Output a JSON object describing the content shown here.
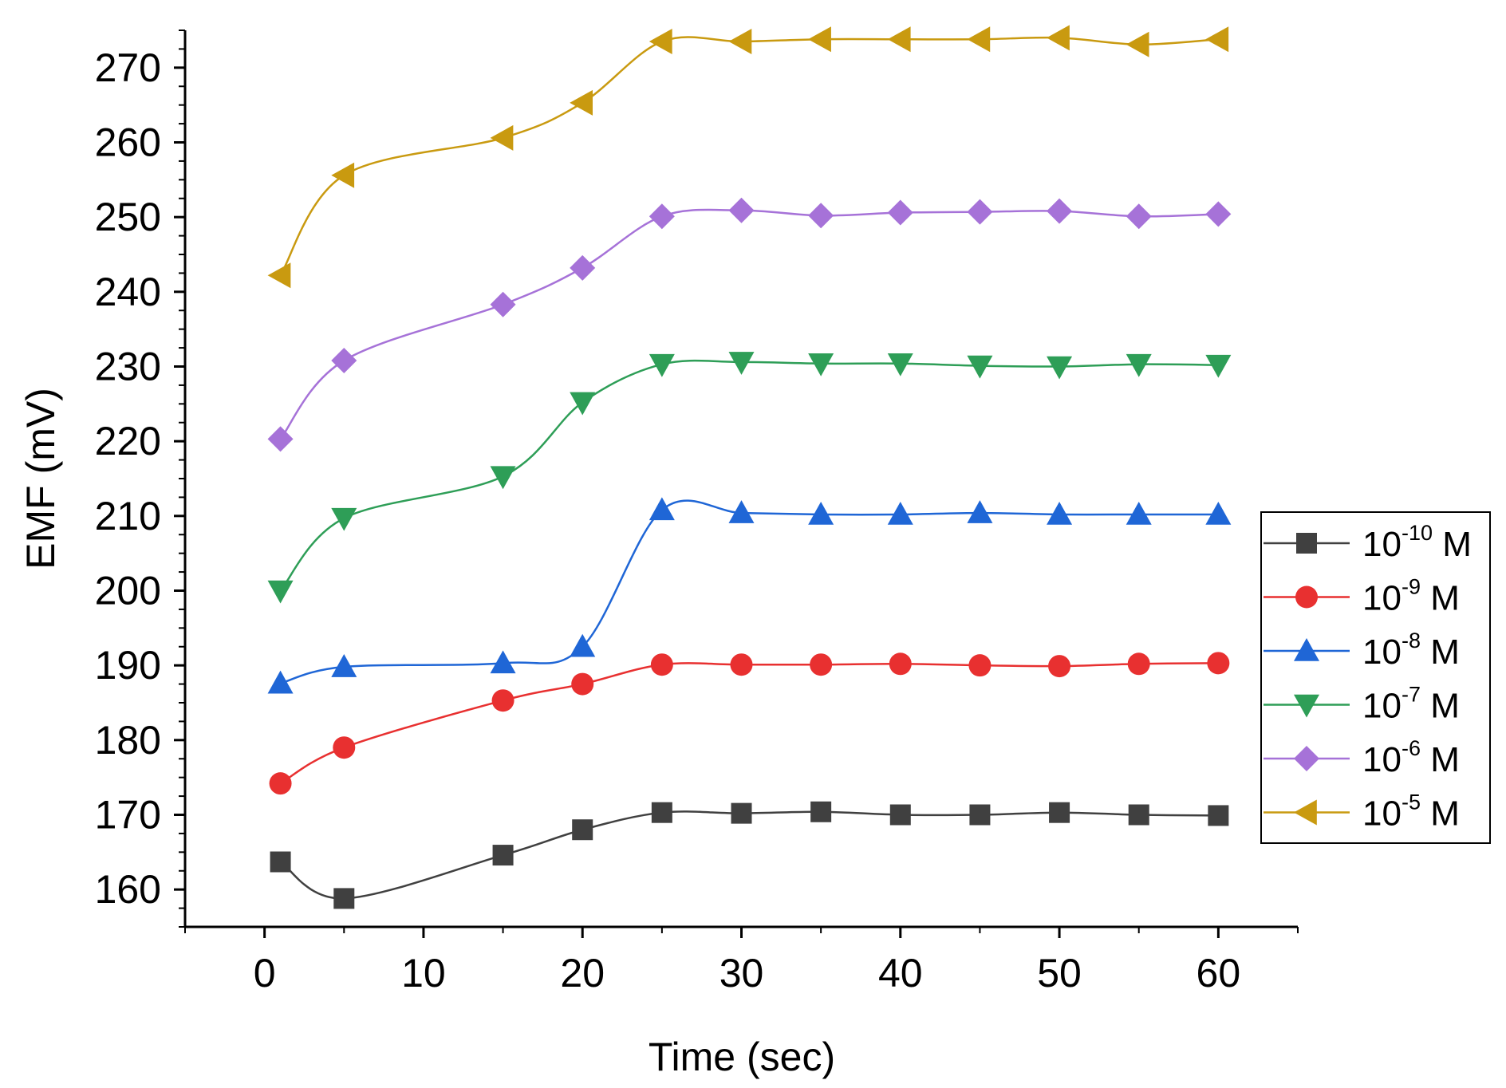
{
  "chart_data": {
    "type": "line",
    "title": "",
    "xlabel": "Time (sec)",
    "ylabel": "EMF (mV)",
    "xlim": [
      -5,
      65
    ],
    "ylim": [
      155,
      275
    ],
    "xticks": [
      0,
      10,
      20,
      30,
      40,
      50,
      60
    ],
    "yticks": [
      160,
      170,
      180,
      190,
      200,
      210,
      220,
      230,
      240,
      250,
      260,
      270
    ],
    "x": [
      1,
      5,
      15,
      20,
      25,
      30,
      35,
      40,
      45,
      50,
      55,
      60
    ],
    "legend_position": "right",
    "series": [
      {
        "name": "10-10 M",
        "label_base": "10",
        "label_exp": "-10",
        "label_unit": "M",
        "color": "#404040",
        "marker": "square",
        "values": [
          163.7,
          158.8,
          164.6,
          168.0,
          170.3,
          170.2,
          170.4,
          170.0,
          170.0,
          170.3,
          170.0,
          169.9
        ]
      },
      {
        "name": "10-9 M",
        "label_base": "10",
        "label_exp": "-9",
        "label_unit": "M",
        "color": "#e83030",
        "marker": "circle",
        "values": [
          174.2,
          179.0,
          185.3,
          187.5,
          190.1,
          190.1,
          190.1,
          190.2,
          190.0,
          189.9,
          190.2,
          190.3
        ]
      },
      {
        "name": "10-8 M",
        "label_base": "10",
        "label_exp": "-8",
        "label_unit": "M",
        "color": "#1f66d6",
        "marker": "triangle-up",
        "values": [
          187.6,
          189.8,
          190.3,
          192.5,
          210.8,
          210.4,
          210.2,
          210.2,
          210.4,
          210.2,
          210.2,
          210.2
        ]
      },
      {
        "name": "10-7 M",
        "label_base": "10",
        "label_exp": "-7",
        "label_unit": "M",
        "color": "#2e9e57",
        "marker": "triangle-down",
        "values": [
          200.0,
          209.7,
          215.3,
          225.2,
          230.3,
          230.6,
          230.4,
          230.4,
          230.1,
          230.0,
          230.3,
          230.2
        ]
      },
      {
        "name": "10-6 M",
        "label_base": "10",
        "label_exp": "-6",
        "label_unit": "M",
        "color": "#a672d8",
        "marker": "diamond",
        "values": [
          220.3,
          230.8,
          238.3,
          243.2,
          250.1,
          250.9,
          250.2,
          250.6,
          250.7,
          250.8,
          250.1,
          250.4
        ]
      },
      {
        "name": "10-5 M",
        "label_base": "10",
        "label_exp": "-5",
        "label_unit": "M",
        "color": "#c99a10",
        "marker": "triangle-left",
        "values": [
          242.2,
          255.6,
          260.6,
          265.3,
          273.5,
          273.5,
          273.8,
          273.8,
          273.8,
          274.0,
          273.1,
          273.8
        ]
      }
    ]
  }
}
